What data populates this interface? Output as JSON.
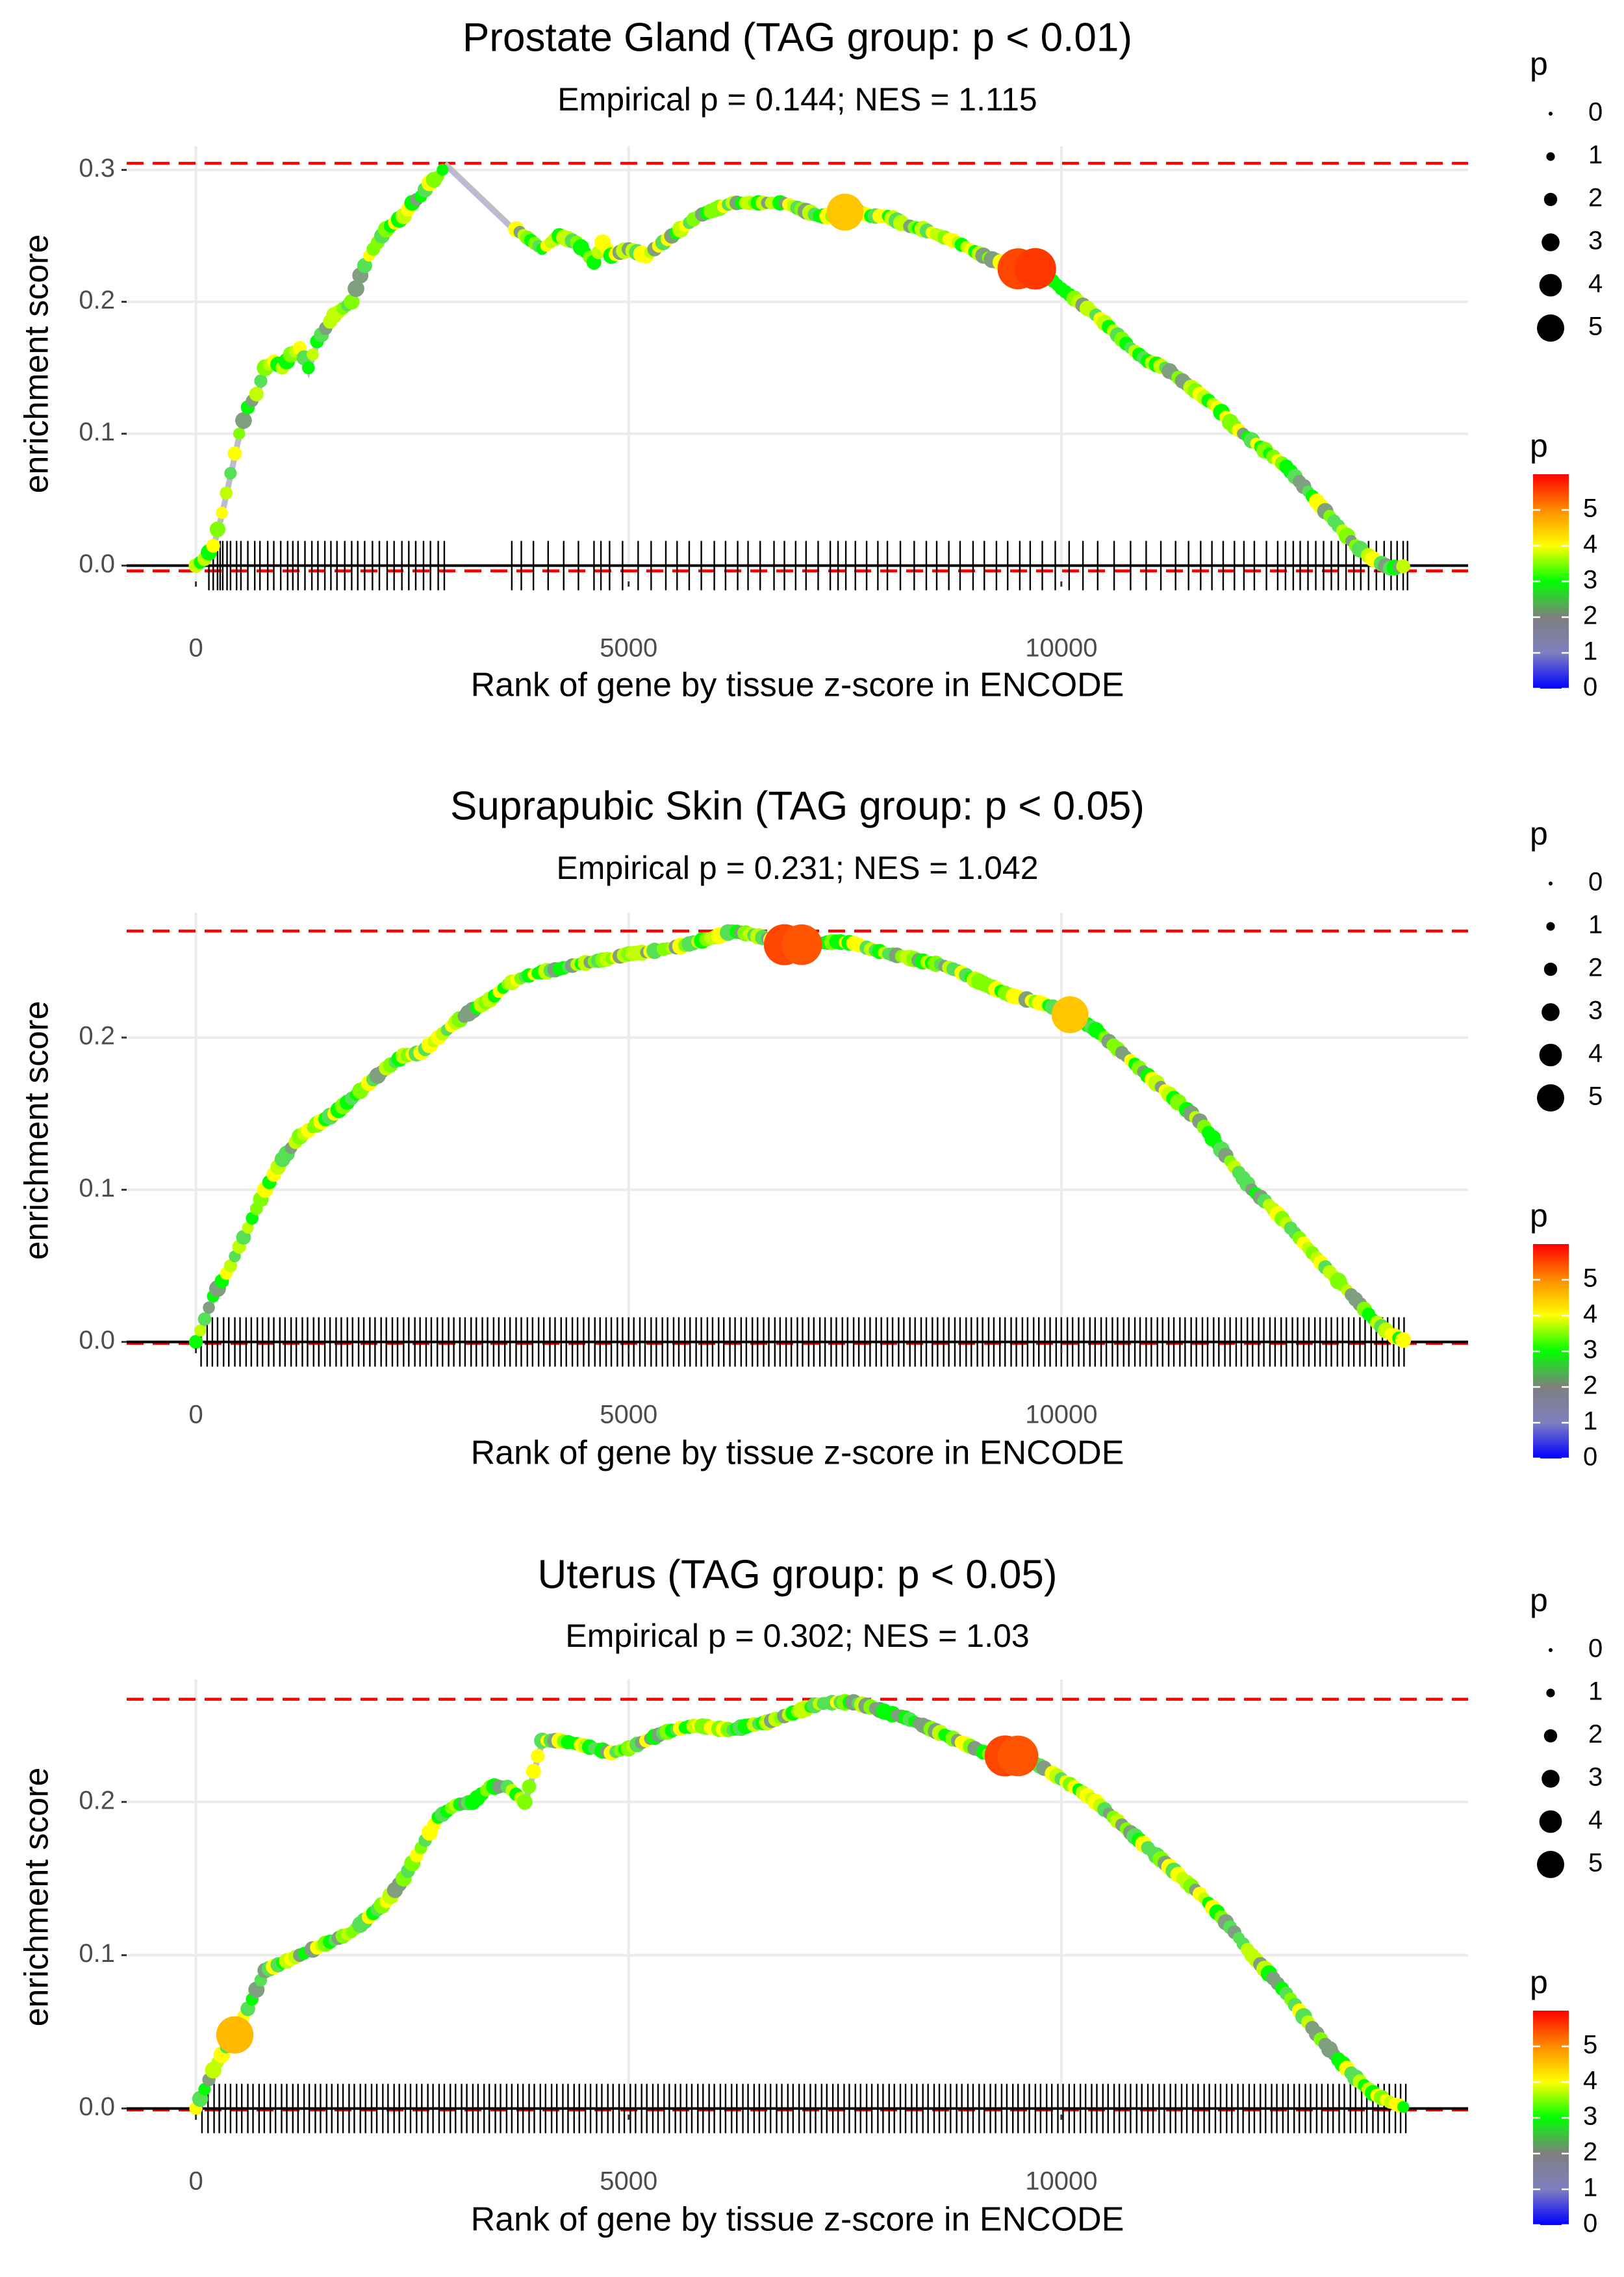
{
  "chart_data": [
    {
      "type": "line",
      "title": "Prostate Gland (TAG group: p < 0.01)",
      "subtitle": "Empirical p = 0.144; NES = 1.115",
      "xlabel": "Rank of gene by tissue z-score in ENCODE",
      "ylabel": "enrichment score",
      "xlim": [
        -800,
        14700
      ],
      "ylim": [
        -0.012,
        0.318
      ],
      "x_ticks": [
        0,
        5000,
        10000
      ],
      "x_tick_labels": [
        "0",
        "5000",
        "10000"
      ],
      "y_ticks": [
        0.0,
        0.1,
        0.2,
        0.3
      ],
      "y_tick_labels": [
        "0.0",
        "0.1",
        "0.2",
        "0.3"
      ],
      "max_es": 0.305,
      "min_es": -0.004,
      "curve_x": [
        0,
        100,
        200,
        300,
        400,
        500,
        600,
        700,
        800,
        900,
        1000,
        1100,
        1200,
        1300,
        1400,
        1500,
        1600,
        1700,
        1800,
        1900,
        2000,
        2100,
        2200,
        2300,
        2400,
        2500,
        2600,
        2700,
        2800,
        2900,
        3700,
        4000,
        4200,
        4400,
        4600,
        4700,
        4800,
        5000,
        5200,
        5400,
        5600,
        5800,
        6000,
        6200,
        6400,
        6600,
        6800,
        7000,
        7200,
        7400,
        7500,
        7600,
        7800,
        8000,
        8200,
        8400,
        8600,
        8800,
        9000,
        9200,
        9400,
        9500,
        9600,
        9700,
        9800,
        10000,
        10200,
        10400,
        10600,
        10800,
        11000,
        11200,
        11400,
        11600,
        11800,
        12000,
        12200,
        12400,
        12600,
        12800,
        13000,
        13200,
        13400,
        13600,
        13800,
        14000
      ],
      "curve_y": [
        0.0,
        0.005,
        0.015,
        0.04,
        0.07,
        0.1,
        0.12,
        0.13,
        0.15,
        0.155,
        0.15,
        0.16,
        0.165,
        0.15,
        0.17,
        0.18,
        0.19,
        0.195,
        0.2,
        0.22,
        0.235,
        0.245,
        0.255,
        0.26,
        0.265,
        0.275,
        0.28,
        0.29,
        0.295,
        0.305,
        0.255,
        0.24,
        0.25,
        0.245,
        0.23,
        0.245,
        0.235,
        0.24,
        0.235,
        0.245,
        0.255,
        0.265,
        0.27,
        0.275,
        0.275,
        0.275,
        0.275,
        0.27,
        0.265,
        0.265,
        0.268,
        0.27,
        0.265,
        0.265,
        0.258,
        0.255,
        0.25,
        0.245,
        0.238,
        0.232,
        0.228,
        0.225,
        0.225,
        0.225,
        0.222,
        0.21,
        0.2,
        0.19,
        0.178,
        0.165,
        0.155,
        0.15,
        0.14,
        0.13,
        0.12,
        0.105,
        0.095,
        0.085,
        0.075,
        0.06,
        0.045,
        0.03,
        0.015,
        0.005,
        -0.002,
        0.0
      ],
      "highlight_points": [
        {
          "x": 7500,
          "y": 0.268,
          "p": 4.5
        },
        {
          "x": 9500,
          "y": 0.225,
          "p": 5.5
        },
        {
          "x": 9700,
          "y": 0.225,
          "p": 5.6
        }
      ],
      "rug_x": [
        150,
        200,
        250,
        280,
        310,
        360,
        400,
        470,
        520,
        600,
        680,
        740,
        830,
        900,
        980,
        1060,
        1120,
        1180,
        1260,
        1340,
        1410,
        1490,
        1560,
        1630,
        1720,
        1800,
        1870,
        1950,
        2040,
        2120,
        2210,
        2290,
        2380,
        2460,
        2540,
        2630,
        2710,
        2800,
        2870,
        3650,
        3760,
        3900,
        4070,
        4250,
        4420,
        4600,
        4680,
        4780,
        4930,
        5110,
        5260,
        5430,
        5560,
        5700,
        5840,
        5990,
        6120,
        6260,
        6380,
        6520,
        6680,
        6800,
        6930,
        7050,
        7190,
        7330,
        7420,
        7510,
        7620,
        7750,
        7880,
        7990,
        8140,
        8300,
        8440,
        8560,
        8700,
        8830,
        8980,
        9110,
        9250,
        9380,
        9520,
        9640,
        9780,
        9930,
        10090,
        10250,
        10420,
        10610,
        10800,
        10980,
        11150,
        11320,
        11470,
        11610,
        11740,
        11870,
        12000,
        12110,
        12230,
        12370,
        12500,
        12590,
        12680,
        12760,
        12850,
        12940,
        13030,
        13120,
        13200,
        13290,
        13380,
        13460,
        13550,
        13640,
        13730,
        13810,
        13880,
        13950,
        14000
      ],
      "legend_size": {
        "title": "p",
        "labels": [
          "0",
          "1",
          "2",
          "3",
          "4",
          "5"
        ]
      },
      "legend_color": {
        "title": "p",
        "labels": [
          "0",
          "1",
          "2",
          "3",
          "4",
          "5"
        ],
        "range": [
          0,
          6
        ],
        "colors": [
          "#0000ff",
          "#7f7fc0",
          "#7f7f7f",
          "#00ff00",
          "#ffff00",
          "#ff8c00",
          "#ff0000"
        ]
      },
      "colors": {
        "ref_line": "#ff0000",
        "curve": "#bebebe",
        "grid": "#ebebeb",
        "axis": "#000000"
      }
    },
    {
      "type": "line",
      "title": "Suprapubic Skin (TAG group: p < 0.05)",
      "subtitle": "Empirical p = 0.231; NES = 1.042",
      "xlabel": "Rank of gene by tissue z-score in ENCODE",
      "ylabel": "enrichment score",
      "xlim": [
        -800,
        14700
      ],
      "ylim": [
        -0.004,
        0.282
      ],
      "x_ticks": [
        0,
        5000,
        10000
      ],
      "x_tick_labels": [
        "0",
        "5000",
        "10000"
      ],
      "y_ticks": [
        0.0,
        0.1,
        0.2
      ],
      "y_tick_labels": [
        "0.0",
        "0.1",
        "0.2"
      ],
      "max_es": 0.27,
      "min_es": -0.001,
      "curve_x": [
        0,
        200,
        400,
        600,
        800,
        1000,
        1200,
        1400,
        1600,
        1800,
        2000,
        2200,
        2400,
        2600,
        2800,
        3000,
        3200,
        3400,
        3600,
        3800,
        4000,
        4200,
        4400,
        4600,
        4800,
        5000,
        5200,
        5400,
        5600,
        5800,
        6000,
        6200,
        6400,
        6600,
        6800,
        7000,
        7200,
        7400,
        7600,
        7800,
        8000,
        8200,
        8400,
        8600,
        8800,
        9000,
        9200,
        9400,
        9600,
        9800,
        10000,
        10200,
        10400,
        10600,
        10800,
        11000,
        11200,
        11400,
        11600,
        11800,
        12000,
        12200,
        12400,
        12600,
        12800,
        13000,
        13200,
        13400,
        13600,
        13800,
        14000
      ],
      "curve_y": [
        0.0,
        0.03,
        0.05,
        0.075,
        0.1,
        0.12,
        0.135,
        0.143,
        0.15,
        0.16,
        0.17,
        0.18,
        0.188,
        0.19,
        0.2,
        0.21,
        0.218,
        0.225,
        0.235,
        0.24,
        0.243,
        0.245,
        0.248,
        0.25,
        0.252,
        0.255,
        0.256,
        0.258,
        0.26,
        0.263,
        0.266,
        0.27,
        0.268,
        0.265,
        0.262,
        0.26,
        0.262,
        0.263,
        0.262,
        0.258,
        0.255,
        0.253,
        0.25,
        0.248,
        0.244,
        0.238,
        0.233,
        0.228,
        0.225,
        0.222,
        0.218,
        0.212,
        0.205,
        0.195,
        0.185,
        0.175,
        0.165,
        0.155,
        0.145,
        0.13,
        0.115,
        0.1,
        0.09,
        0.078,
        0.065,
        0.052,
        0.04,
        0.028,
        0.015,
        0.005,
        0.0
      ],
      "highlight_points": [
        {
          "x": 6800,
          "y": 0.261,
          "p": 5.5
        },
        {
          "x": 7000,
          "y": 0.261,
          "p": 5.4
        },
        {
          "x": 10100,
          "y": 0.215,
          "p": 4.5
        }
      ],
      "rug_x": [
        60,
        130,
        190,
        250,
        320,
        380,
        450,
        510,
        580,
        640,
        710,
        770,
        840,
        900,
        970,
        1030,
        1100,
        1160,
        1230,
        1290,
        1360,
        1420,
        1490,
        1550,
        1620,
        1680,
        1750,
        1810,
        1880,
        1940,
        2010,
        2070,
        2140,
        2200,
        2270,
        2330,
        2400,
        2460,
        2530,
        2590,
        2660,
        2720,
        2790,
        2850,
        2920,
        2980,
        3050,
        3110,
        3180,
        3240,
        3310,
        3370,
        3440,
        3500,
        3570,
        3630,
        3700,
        3760,
        3830,
        3890,
        3960,
        4020,
        4090,
        4150,
        4220,
        4280,
        4350,
        4410,
        4480,
        4540,
        4610,
        4670,
        4740,
        4800,
        4870,
        4930,
        5000,
        5060,
        5130,
        5190,
        5260,
        5320,
        5390,
        5450,
        5520,
        5580,
        5650,
        5710,
        5780,
        5840,
        5910,
        5970,
        6040,
        6100,
        6170,
        6230,
        6300,
        6360,
        6430,
        6490,
        6560,
        6620,
        6690,
        6750,
        6820,
        6880,
        6950,
        7010,
        7080,
        7140,
        7210,
        7270,
        7340,
        7400,
        7470,
        7530,
        7600,
        7660,
        7730,
        7790,
        7860,
        7920,
        7990,
        8050,
        8120,
        8180,
        8250,
        8310,
        8380,
        8440,
        8510,
        8570,
        8640,
        8700,
        8770,
        8830,
        8900,
        8960,
        9030,
        9090,
        9160,
        9220,
        9290,
        9350,
        9420,
        9480,
        9550,
        9610,
        9680,
        9740,
        9810,
        9870,
        9940,
        10000,
        10070,
        10130,
        10200,
        10260,
        10330,
        10390,
        10460,
        10520,
        10590,
        10650,
        10720,
        10780,
        10850,
        10910,
        10980,
        11040,
        11110,
        11170,
        11240,
        11300,
        11370,
        11430,
        11500,
        11560,
        11630,
        11690,
        11760,
        11820,
        11890,
        11950,
        12020,
        12080,
        12150,
        12210,
        12280,
        12340,
        12410,
        12470,
        12540,
        12600,
        12670,
        12730,
        12800,
        12860,
        12930,
        12990,
        13060,
        13120,
        13190,
        13250,
        13320,
        13380,
        13450,
        13510,
        13580,
        13640,
        13710,
        13770,
        13840,
        13900,
        13960
      ],
      "legend_size": {
        "title": "p",
        "labels": [
          "0",
          "1",
          "2",
          "3",
          "4",
          "5"
        ]
      },
      "legend_color": {
        "title": "p",
        "labels": [
          "0",
          "1",
          "2",
          "3",
          "4",
          "5"
        ],
        "range": [
          0,
          6
        ],
        "colors": [
          "#0000ff",
          "#7f7fc0",
          "#7f7f7f",
          "#00ff00",
          "#ffff00",
          "#ff8c00",
          "#ff0000"
        ]
      },
      "colors": {
        "ref_line": "#ff0000",
        "curve": "#bebebe",
        "grid": "#ebebeb",
        "axis": "#000000"
      }
    },
    {
      "type": "line",
      "title": "Uterus (TAG group: p < 0.05)",
      "subtitle": "Empirical p = 0.302; NES = 1.03",
      "xlabel": "Rank of gene by tissue z-score in ENCODE",
      "ylabel": "enrichment score",
      "xlim": [
        -800,
        14700
      ],
      "ylim": [
        -0.004,
        0.28
      ],
      "x_ticks": [
        0,
        5000,
        10000
      ],
      "x_tick_labels": [
        "0",
        "5000",
        "10000"
      ],
      "y_ticks": [
        0.0,
        0.1,
        0.2
      ],
      "y_tick_labels": [
        "0.0",
        "0.1",
        "0.2"
      ],
      "max_es": 0.267,
      "min_es": -0.001,
      "curve_x": [
        0,
        200,
        400,
        600,
        800,
        1000,
        1200,
        1400,
        1600,
        1800,
        2000,
        2200,
        2400,
        2600,
        2800,
        3000,
        3200,
        3400,
        3600,
        3800,
        3900,
        4000,
        4200,
        4400,
        4600,
        4800,
        5000,
        5200,
        5400,
        5600,
        5800,
        6000,
        6200,
        6400,
        6600,
        6800,
        7000,
        7200,
        7400,
        7600,
        7800,
        8000,
        8200,
        8400,
        8600,
        8800,
        9000,
        9200,
        9400,
        9600,
        9800,
        10000,
        10200,
        10400,
        10600,
        10800,
        11000,
        11200,
        11400,
        11600,
        11800,
        12000,
        12200,
        12400,
        12600,
        12800,
        13000,
        13200,
        13400,
        13600,
        13800,
        14000
      ],
      "curve_y": [
        0.0,
        0.025,
        0.045,
        0.065,
        0.09,
        0.095,
        0.1,
        0.105,
        0.11,
        0.115,
        0.125,
        0.135,
        0.15,
        0.17,
        0.19,
        0.198,
        0.2,
        0.21,
        0.21,
        0.2,
        0.22,
        0.24,
        0.24,
        0.238,
        0.235,
        0.232,
        0.235,
        0.24,
        0.245,
        0.248,
        0.25,
        0.248,
        0.247,
        0.25,
        0.252,
        0.256,
        0.26,
        0.264,
        0.265,
        0.265,
        0.262,
        0.258,
        0.255,
        0.25,
        0.245,
        0.24,
        0.235,
        0.23,
        0.23,
        0.228,
        0.222,
        0.215,
        0.208,
        0.2,
        0.19,
        0.18,
        0.17,
        0.16,
        0.15,
        0.14,
        0.128,
        0.115,
        0.1,
        0.088,
        0.075,
        0.06,
        0.045,
        0.032,
        0.02,
        0.01,
        0.004,
        0.0
      ],
      "highlight_points": [
        {
          "x": 450,
          "y": 0.048,
          "p": 4.6
        },
        {
          "x": 9350,
          "y": 0.23,
          "p": 5.5
        },
        {
          "x": 9500,
          "y": 0.23,
          "p": 5.4
        }
      ],
      "rug_x": [
        70,
        140,
        210,
        270,
        340,
        400,
        470,
        530,
        600,
        660,
        730,
        790,
        860,
        920,
        990,
        1050,
        1120,
        1180,
        1250,
        1310,
        1380,
        1440,
        1510,
        1570,
        1640,
        1700,
        1770,
        1830,
        1900,
        1960,
        2030,
        2090,
        2160,
        2220,
        2290,
        2350,
        2420,
        2480,
        2550,
        2610,
        2680,
        2740,
        2810,
        2870,
        2940,
        3000,
        3070,
        3130,
        3200,
        3260,
        3330,
        3390,
        3460,
        3520,
        3590,
        3650,
        3720,
        3780,
        3850,
        3910,
        3980,
        4040,
        4110,
        4170,
        4240,
        4300,
        4370,
        4430,
        4500,
        4560,
        4630,
        4690,
        4760,
        4820,
        4890,
        4950,
        5020,
        5080,
        5150,
        5210,
        5280,
        5340,
        5410,
        5470,
        5540,
        5600,
        5670,
        5730,
        5800,
        5860,
        5930,
        5990,
        6060,
        6120,
        6190,
        6250,
        6320,
        6380,
        6450,
        6510,
        6580,
        6640,
        6710,
        6770,
        6840,
        6900,
        6970,
        7030,
        7100,
        7160,
        7230,
        7290,
        7360,
        7420,
        7490,
        7550,
        7620,
        7680,
        7750,
        7810,
        7880,
        7940,
        8010,
        8070,
        8140,
        8200,
        8270,
        8330,
        8400,
        8460,
        8530,
        8590,
        8660,
        8720,
        8790,
        8850,
        8920,
        8980,
        9050,
        9110,
        9180,
        9240,
        9310,
        9370,
        9440,
        9500,
        9570,
        9630,
        9700,
        9760,
        9830,
        9890,
        9960,
        10020,
        10090,
        10150,
        10220,
        10280,
        10350,
        10410,
        10480,
        10540,
        10610,
        10670,
        10740,
        10800,
        10870,
        10930,
        11000,
        11060,
        11130,
        11190,
        11260,
        11320,
        11390,
        11450,
        11520,
        11580,
        11650,
        11710,
        11780,
        11840,
        11910,
        11970,
        12040,
        12100,
        12170,
        12230,
        12300,
        12360,
        12430,
        12490,
        12560,
        12620,
        12690,
        12750,
        12820,
        12880,
        12950,
        13010,
        13080,
        13140,
        13210,
        13270,
        13340,
        13400,
        13470,
        13530,
        13600,
        13660,
        13730,
        13790,
        13860,
        13920,
        13980
      ],
      "legend_size": {
        "title": "p",
        "labels": [
          "0",
          "1",
          "2",
          "3",
          "4",
          "5"
        ]
      },
      "legend_color": {
        "title": "p",
        "labels": [
          "0",
          "1",
          "2",
          "3",
          "4",
          "5"
        ],
        "range": [
          0,
          6
        ],
        "colors": [
          "#0000ff",
          "#7f7fc0",
          "#7f7f7f",
          "#00ff00",
          "#ffff00",
          "#ff8c00",
          "#ff0000"
        ]
      },
      "colors": {
        "ref_line": "#ff0000",
        "curve": "#bebebe",
        "grid": "#ebebeb",
        "axis": "#000000"
      }
    }
  ]
}
